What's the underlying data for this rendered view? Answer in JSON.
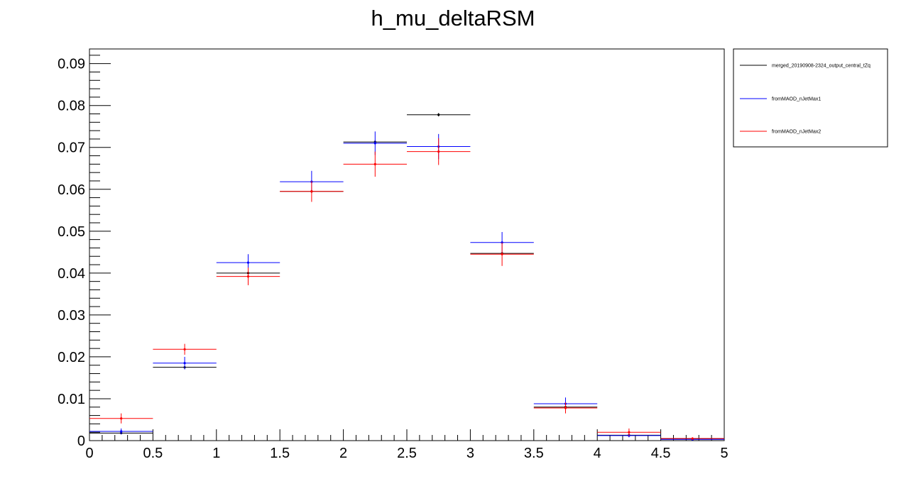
{
  "chart_data": {
    "type": "scatter",
    "title": "h_mu_deltaRSM",
    "xlabel": "",
    "ylabel": "",
    "xlim": [
      0,
      5
    ],
    "ylim": [
      0,
      0.0935
    ],
    "grid": false,
    "legend_position": "top-right-outside",
    "x_ticks": [
      "0",
      "0.5",
      "1",
      "1.5",
      "2",
      "2.5",
      "3",
      "3.5",
      "4",
      "4.5",
      "5"
    ],
    "y_ticks": [
      "0",
      "0.01",
      "0.02",
      "0.03",
      "0.04",
      "0.05",
      "0.06",
      "0.07",
      "0.08",
      "0.09"
    ],
    "bin_edges": [
      0,
      0.5,
      1,
      1.5,
      2,
      2.5,
      3,
      3.5,
      4,
      4.5,
      5
    ],
    "series": [
      {
        "name": "merged_20190908-2324_output_central_tZq",
        "color": "#000000",
        "values": [
          0.0018,
          0.0175,
          0.04,
          0.0595,
          0.0713,
          0.0778,
          0.0447,
          0.008,
          0.0013,
          0.0004
        ],
        "errors": [
          0.0001,
          0.0003,
          0.0003,
          0.0004,
          0.0004,
          0.0004,
          0.0003,
          0.0001,
          0.0001,
          5e-05
        ]
      },
      {
        "name": "fromMAOD_nJetMax1",
        "color": "#0000ff",
        "values": [
          0.0022,
          0.0185,
          0.0425,
          0.0618,
          0.071,
          0.0702,
          0.0473,
          0.0088,
          0.0012,
          0.0003
        ],
        "errors": [
          0.0007,
          0.0015,
          0.002,
          0.0026,
          0.0028,
          0.003,
          0.0025,
          0.0015,
          0.0004,
          0.0002
        ]
      },
      {
        "name": "fromMAOD_nJetMax2",
        "color": "#ff0000",
        "values": [
          0.0053,
          0.0218,
          0.0392,
          0.0595,
          0.066,
          0.069,
          0.0445,
          0.0078,
          0.002,
          0.0005
        ],
        "errors": [
          0.0012,
          0.0013,
          0.0021,
          0.0025,
          0.003,
          0.0032,
          0.0028,
          0.0013,
          0.0009,
          0.0003
        ]
      }
    ]
  }
}
